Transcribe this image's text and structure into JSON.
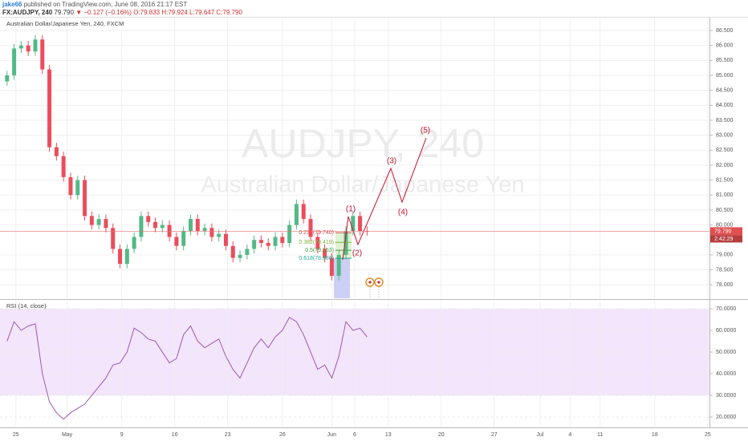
{
  "header": {
    "author": "jake66",
    "published": "published on TradingView.com, June 08, 2016 21:17 EST",
    "symbol": "FX:AUDJPY, 240",
    "last": "79.790",
    "arrow": "▼",
    "change": "−0.127 (−0.16%)",
    "open": "O:79.833",
    "high": "H:79.924",
    "low": "L:79.647",
    "close": "C:79.790"
  },
  "chart_data": [
    {
      "type": "candlestick",
      "title": "Australian Dollar/Japanese Yen, 240, FXCM",
      "watermark": "AUDJPY, 240",
      "watermark_subtitle": "Australian Dollar/Japanese Yen",
      "x": [
        -5,
        -1,
        3,
        7,
        11,
        15,
        19,
        23,
        27,
        31,
        35,
        39,
        43,
        47,
        51,
        55,
        59,
        63,
        67,
        71,
        75,
        79,
        83,
        87,
        91,
        95,
        99,
        103,
        107,
        111,
        115,
        119,
        123,
        127,
        131,
        135,
        139,
        143,
        147,
        151,
        155,
        159,
        163,
        167,
        171,
        175,
        179,
        183,
        187,
        191,
        195,
        199
      ],
      "open": [
        84.8,
        85.0,
        85.9,
        86.0,
        85.8,
        86.2,
        85.2,
        82.6,
        82.3,
        81.6,
        81.0,
        81.5,
        80.3,
        80.0,
        80.2,
        79.9,
        79.2,
        78.7,
        79.2,
        79.6,
        80.3,
        80.1,
        79.9,
        80.0,
        79.6,
        79.3,
        79.8,
        80.2,
        79.8,
        79.9,
        79.6,
        79.7,
        79.3,
        78.9,
        79.0,
        79.2,
        79.5,
        79.4,
        79.3,
        79.6,
        79.4,
        80.0,
        80.7,
        80.2,
        79.6,
        79.2,
        78.9,
        78.3,
        79.0,
        79.8,
        80.3,
        79.8
      ],
      "high": [
        85.15,
        86.05,
        86.15,
        86.15,
        86.35,
        86.35,
        85.35,
        82.75,
        82.45,
        81.75,
        81.65,
        81.65,
        80.45,
        80.35,
        80.35,
        80.05,
        79.35,
        79.35,
        79.75,
        80.45,
        80.45,
        80.25,
        80.15,
        80.15,
        79.75,
        79.95,
        80.35,
        80.35,
        80.05,
        80.05,
        79.85,
        79.85,
        79.45,
        79.15,
        79.35,
        79.65,
        79.65,
        79.55,
        79.75,
        79.75,
        80.15,
        80.85,
        80.85,
        80.35,
        79.75,
        79.35,
        79.05,
        79.15,
        79.95,
        80.45,
        80.45,
        79.95
      ],
      "low": [
        84.65,
        84.85,
        85.75,
        85.65,
        85.65,
        85.05,
        82.45,
        82.15,
        81.45,
        80.85,
        80.85,
        80.15,
        79.85,
        79.85,
        79.75,
        79.05,
        78.55,
        78.55,
        79.05,
        79.45,
        79.95,
        79.75,
        79.75,
        79.45,
        79.15,
        79.15,
        79.65,
        79.65,
        79.65,
        79.45,
        79.45,
        79.15,
        78.75,
        78.75,
        78.85,
        79.05,
        79.25,
        79.15,
        79.15,
        79.25,
        79.25,
        79.85,
        80.05,
        79.45,
        79.05,
        78.75,
        78.15,
        78.15,
        78.85,
        79.65,
        79.65,
        79.64
      ],
      "close": [
        85.0,
        85.9,
        86.0,
        85.8,
        86.2,
        85.2,
        82.6,
        82.3,
        81.6,
        81.0,
        81.5,
        80.3,
        80.0,
        80.2,
        79.9,
        79.2,
        78.7,
        79.2,
        79.6,
        80.3,
        80.1,
        79.9,
        80.0,
        79.6,
        79.3,
        79.8,
        80.2,
        79.8,
        79.9,
        79.6,
        79.7,
        79.3,
        78.9,
        79.0,
        79.2,
        79.5,
        79.4,
        79.3,
        79.6,
        79.4,
        80.0,
        80.7,
        80.2,
        79.6,
        79.2,
        78.9,
        78.3,
        79.0,
        79.8,
        80.3,
        79.8,
        79.79
      ],
      "up_color": "#53b987",
      "down_color": "#eb4d5c",
      "xlim": [
        -9,
        393
      ],
      "xticks": [
        {
          "value": 0,
          "label": "25"
        },
        {
          "value": 29,
          "label": "May"
        },
        {
          "value": 60,
          "label": "9"
        },
        {
          "value": 90,
          "label": "16"
        },
        {
          "value": 120,
          "label": "23"
        },
        {
          "value": 151,
          "label": "26"
        },
        {
          "value": 179,
          "label": "Jun"
        },
        {
          "value": 192,
          "label": "6"
        },
        {
          "value": 211,
          "label": "13"
        },
        {
          "value": 241,
          "label": "20"
        },
        {
          "value": 271,
          "label": "27"
        },
        {
          "value": 297,
          "label": "Jul"
        },
        {
          "value": 314,
          "label": "4"
        },
        {
          "value": 331,
          "label": "11"
        },
        {
          "value": 362,
          "label": "18"
        },
        {
          "value": 392,
          "label": "25"
        }
      ],
      "ylim": [
        77.55,
        86.93
      ],
      "yticks": [
        {
          "value": 86.5,
          "label": "86.500"
        },
        {
          "value": 86,
          "label": "86.000"
        },
        {
          "value": 85.5,
          "label": "85.500"
        },
        {
          "value": 85,
          "label": "85.000"
        },
        {
          "value": 84.5,
          "label": "84.500"
        },
        {
          "value": 84,
          "label": "84.000"
        },
        {
          "value": 83.5,
          "label": "83.500"
        },
        {
          "value": 83,
          "label": "83.000"
        },
        {
          "value": 82.5,
          "label": "82.500"
        },
        {
          "value": 82,
          "label": "82.000"
        },
        {
          "value": 81.5,
          "label": "81.500"
        },
        {
          "value": 81,
          "label": "81.000"
        },
        {
          "value": 80.5,
          "label": "80.500"
        },
        {
          "value": 80,
          "label": "80.000"
        },
        {
          "value": 79,
          "label": "79.000"
        },
        {
          "value": 78.5,
          "label": "78.500"
        },
        {
          "value": 78,
          "label": "78.000"
        }
      ],
      "last_price": {
        "value": 79.79,
        "label": "79.790"
      },
      "countdown": "2:42:29",
      "fib": [
        {
          "value": 79.74,
          "label": "0.236(79.740)",
          "color": "#d05050"
        },
        {
          "value": 79.419,
          "label": "0.382(79.419)",
          "color": "#7cb342"
        },
        {
          "value": 79.153,
          "label": "0.5(79.153)",
          "color": "#43a047"
        },
        {
          "value": 78.886,
          "label": "0.618(78.886)",
          "color": "#26a69a"
        }
      ],
      "waves": [
        "(1)",
        "(2)",
        "(3)",
        "(4)",
        "(5)"
      ],
      "wave_color": "#c8102e",
      "grid": true
    },
    {
      "type": "line",
      "title": "RSI (14, close)",
      "color": "#9b59b6",
      "values": [
        55,
        64,
        60,
        62,
        63,
        40,
        27,
        22,
        19,
        22,
        24,
        26,
        30,
        34,
        38,
        44,
        45,
        50,
        61,
        59,
        56,
        55,
        50,
        45,
        47,
        58,
        62,
        55,
        52,
        54,
        56,
        48,
        42,
        38,
        45,
        52,
        56,
        52,
        57,
        60,
        66,
        64,
        58,
        50,
        42,
        44,
        38,
        48,
        64,
        60,
        61,
        57
      ],
      "band": [
        30,
        70
      ],
      "band_color": "#f3e5fb",
      "ylim": [
        15.6,
        73.7
      ],
      "yticks": [
        {
          "value": 70,
          "label": "70.0000"
        },
        {
          "value": 60,
          "label": "60.0000"
        },
        {
          "value": 50,
          "label": "50.0000"
        },
        {
          "value": 40,
          "label": "40.0000"
        },
        {
          "value": 30,
          "label": "30.0000"
        },
        {
          "value": 20,
          "label": "20.0000"
        }
      ]
    }
  ]
}
